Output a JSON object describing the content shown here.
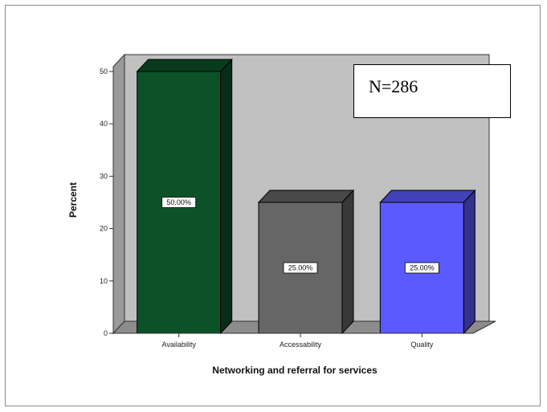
{
  "annotation": {
    "text": "N=286"
  },
  "chart_data": {
    "type": "bar",
    "categories": [
      "Availability",
      "Accessability",
      "Quality"
    ],
    "values": [
      50,
      25,
      25
    ],
    "data_labels": [
      "50.00%",
      "25.00%",
      "25.00%"
    ],
    "colors": [
      "#0b5229",
      "#666666",
      "#5a5aff"
    ],
    "title": "",
    "xlabel": "Networking and referral for services",
    "ylabel": "Percent",
    "ylim": [
      0,
      50
    ],
    "yticks": [
      "0",
      "10",
      "20",
      "30",
      "40",
      "50"
    ],
    "grid": false,
    "legend": "none",
    "style": "3d",
    "wall_color": "#c0c0c0"
  }
}
